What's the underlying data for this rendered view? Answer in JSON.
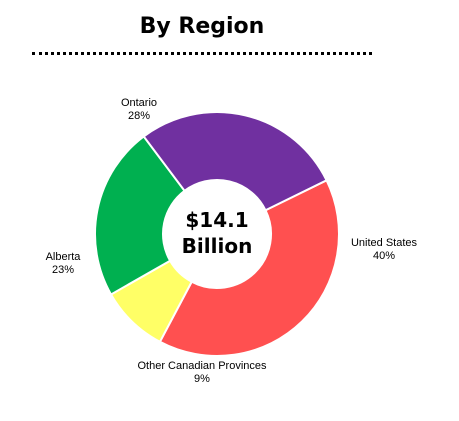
{
  "chart_data": {
    "type": "pie",
    "style": "donut",
    "title": "By Region",
    "center_text": [
      "$14.1",
      "Billion"
    ],
    "slices": [
      {
        "label": "United States",
        "value": 40,
        "value_label": "40%",
        "color": "#ff5050"
      },
      {
        "label": "Other Canadian Provinces",
        "value": 9,
        "value_label": "9%",
        "color": "#ffff66"
      },
      {
        "label": "Alberta",
        "value": 23,
        "value_label": "23%",
        "color": "#00b050"
      },
      {
        "label": "Ontario",
        "value": 28,
        "value_label": "28%",
        "color": "#7030a0"
      }
    ],
    "slice_border_color": "#ffffff"
  }
}
